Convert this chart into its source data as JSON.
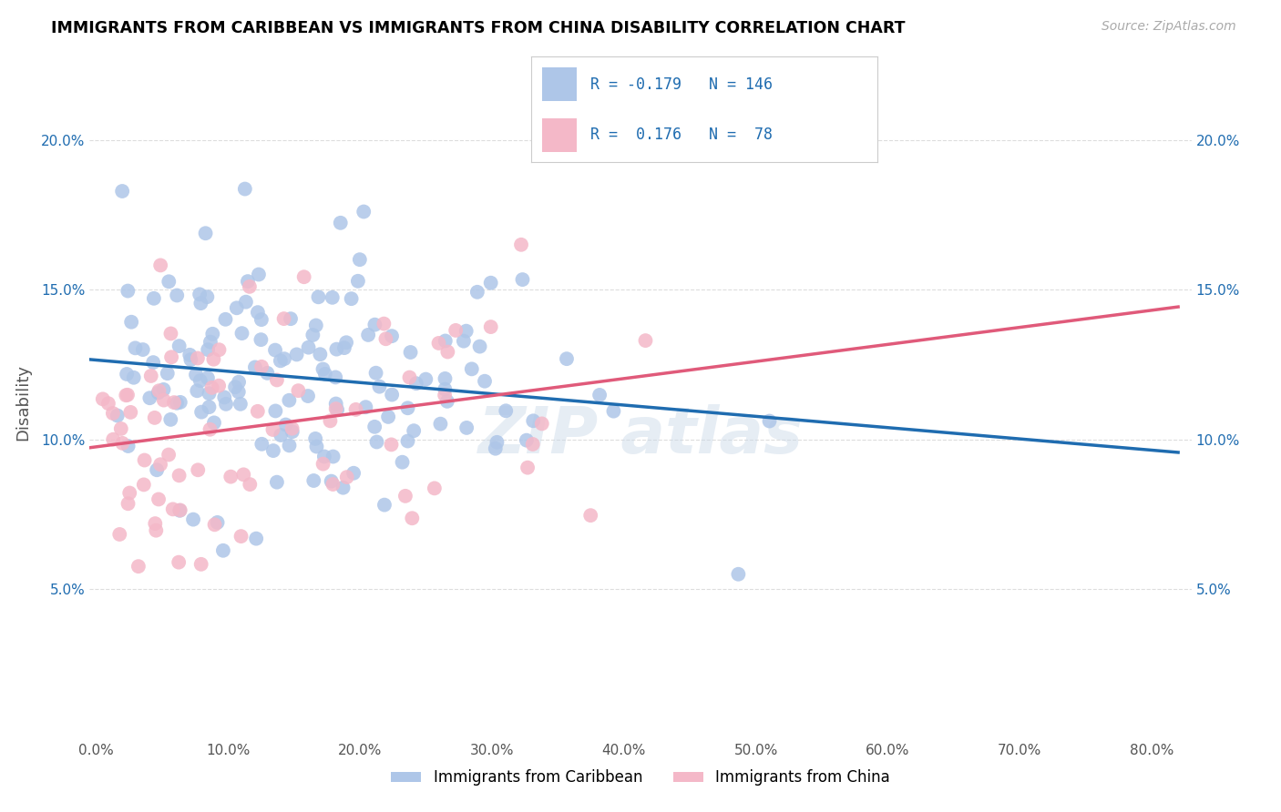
{
  "title": "IMMIGRANTS FROM CARIBBEAN VS IMMIGRANTS FROM CHINA DISABILITY CORRELATION CHART",
  "source": "Source: ZipAtlas.com",
  "ylabel": "Disability",
  "ymin": 0.0,
  "ymax": 0.225,
  "xmin": -0.005,
  "xmax": 0.83,
  "caribbean_R": -0.179,
  "caribbean_N": 146,
  "china_R": 0.176,
  "china_N": 78,
  "caribbean_color": "#aec6e8",
  "china_color": "#f4b8c8",
  "caribbean_line_color": "#1f6cb0",
  "china_line_color": "#e05a7a",
  "legend_label_caribbean": "Immigrants from Caribbean",
  "legend_label_china": "Immigrants from China",
  "caribbean_seed": 42,
  "china_seed": 99
}
